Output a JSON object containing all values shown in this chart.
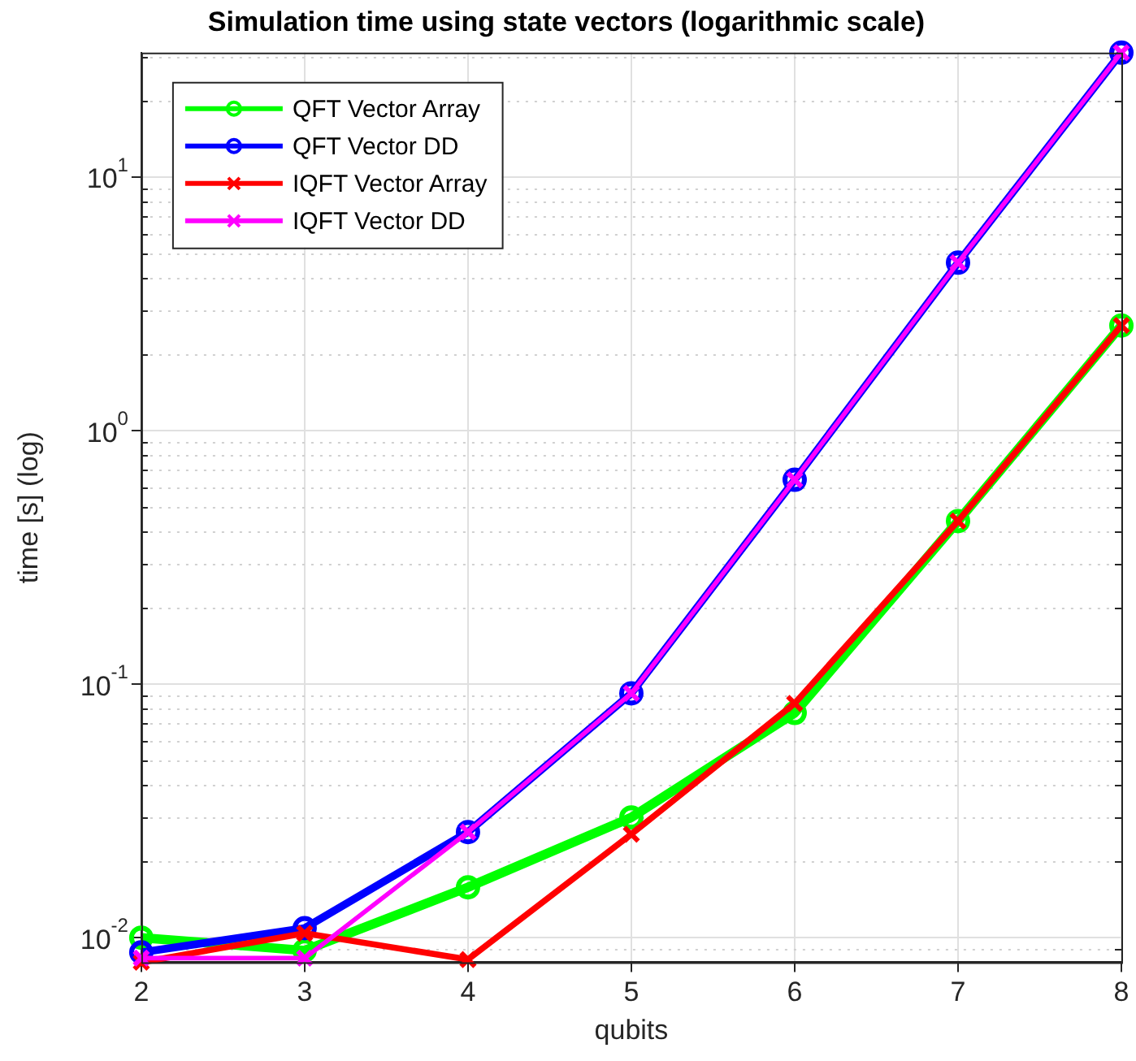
{
  "chart_data": {
    "type": "line",
    "title": "Simulation time using state vectors (logarithmic scale)",
    "xlabel": "qubits",
    "ylabel": "time [s] (log)",
    "x": [
      2,
      3,
      4,
      5,
      6,
      7,
      8
    ],
    "xlim": [
      2,
      8
    ],
    "xticks": [
      2,
      3,
      4,
      5,
      6,
      7,
      8
    ],
    "ylim": [
      0.008,
      31
    ],
    "yticks": [
      {
        "value": 0.01,
        "label": "10$^{-2}$"
      },
      {
        "value": 0.1,
        "label": "10$^{-1}$"
      },
      {
        "value": 1,
        "label": "10$^{0}$"
      },
      {
        "value": 10,
        "label": "10$^{1}$"
      }
    ],
    "log": "y",
    "grid": true,
    "legend": "top left",
    "line_style": "solid",
    "series": [
      {
        "name": "QFT Vector Array",
        "color": "#00ff00",
        "marker": "circle",
        "values": [
          0.01,
          0.0089,
          0.0158,
          0.0298,
          0.077,
          0.44,
          2.6
        ]
      },
      {
        "name": "QFT Vector DD",
        "color": "#0000ff",
        "marker": "circle",
        "values": [
          0.00875,
          0.0109,
          0.0261,
          0.092,
          0.64,
          4.6,
          31
        ]
      },
      {
        "name": "IQFT Vector Array",
        "color": "#ff0000",
        "marker": "cross",
        "values": [
          0.008,
          0.0104,
          0.0082,
          0.0256,
          0.084,
          0.44,
          2.6
        ]
      },
      {
        "name": "IQFT Vector DD",
        "color": "#ff00ff",
        "marker": "cross",
        "values": [
          0.0083,
          0.0083,
          0.0261,
          0.092,
          0.64,
          4.6,
          31
        ]
      }
    ]
  }
}
